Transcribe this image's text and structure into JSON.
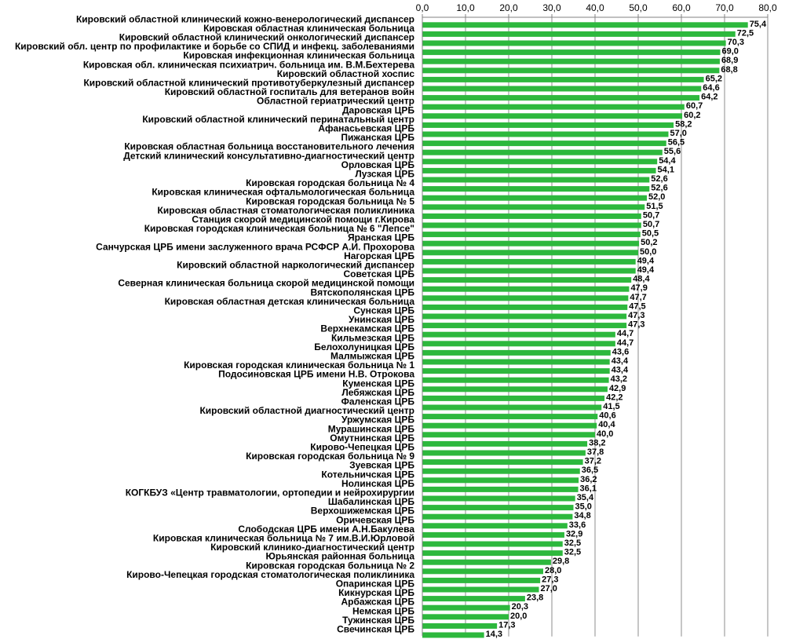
{
  "chart_data": {
    "type": "bar",
    "orientation": "horizontal",
    "bar_color": "#2db83d",
    "xlim": [
      0,
      80
    ],
    "xticks": [
      "0,0",
      "10,0",
      "20,0",
      "30,0",
      "40,0",
      "50,0",
      "60,0",
      "70,0",
      "80,0"
    ],
    "axis_position": "top",
    "grid": true,
    "categories": [
      "Кировский областной клинический кожно-венерологический диспансер",
      "Кировская областная клиническая больница",
      "Кировский областной клинический онкологический диспансер",
      "Кировский обл. центр по профилактике и борьбе со СПИД и инфекц. заболеваниями",
      "Кировская инфекционная клиническая больница",
      "Кировская обл. клиническая психиатрич. больница им. В.М.Бехтерева",
      "Кировский областной хоспис",
      "Кировский областной клинический противотуберкулезный диспансер",
      "Кировский областной госпиталь для ветеранов войн",
      "Областной гериатрический центр",
      "Даровская ЦРБ",
      "Кировский областной клинический перинатальный центр",
      "Афанасьевская ЦРБ",
      "Пижанская ЦРБ",
      "Кировская областная больница восстановительного лечения",
      "Детский клинический консультативно-диагностический центр",
      "Орловская ЦРБ",
      "Лузская ЦРБ",
      "Кировская городская больница № 4",
      "Кировская клиническая офтальмологическая больница",
      "Кировская городская больница № 5",
      "Кировская областная стоматологическая поликлиника",
      "Станция скорой медицинской помощи г.Кирова",
      "Кировская городская клиническая больница № 6 \"Лепсе\"",
      "Яранская ЦРБ",
      "Санчурская ЦРБ имени заслуженного врача РСФСР А.И. Прохорова",
      "Нагорская ЦРБ",
      "Кировский областной наркологический диспансер",
      "Советская ЦРБ",
      "Северная клиническая больница скорой медицинской помощи",
      "Вятскополянская ЦРБ",
      "Кировская областная детская клиническая больница",
      "Сунская ЦРБ",
      "Унинская ЦРБ",
      "Верхнекамская ЦРБ",
      "Кильмезская ЦРБ",
      "Белохолуницкая ЦРБ",
      "Малмыжская ЦРБ",
      "Кировская городская клиническая больница № 1",
      "Подосиновская ЦРБ имени Н.В. Отрокова",
      "Куменская ЦРБ",
      "Лебяжская ЦРБ",
      "Фаленская ЦРБ",
      "Кировский областной диагностический центр",
      "Уржумская ЦРБ",
      "Мурашинская ЦРБ",
      "Омутнинская ЦРБ",
      "Кирово-Чепецкая ЦРБ",
      "Кировская городская больница № 9",
      "Зуевская ЦРБ",
      "Котельничская ЦРБ",
      "Нолинская ЦРБ",
      "КОГКБУЗ «Центр травматологии, ортопедии и нейрохирургии",
      "Шабалинская ЦРБ",
      "Верхошижемская ЦРБ",
      "Оричевская ЦРБ",
      "Слободская ЦРБ имени А.Н.Бакулева",
      "Кировская клиническая больница № 7 им.В.И.Юрловой",
      "Кировский клинико-диагностический центр",
      "Юрьянская районная больница",
      "Кировская городская больница № 2",
      "Кирово-Чепецкая городская стоматологическая поликлиника",
      "Опаринская ЦРБ",
      "Кикнурская ЦРБ",
      "Арбажская ЦРБ",
      "Немская ЦРБ",
      "Тужинская ЦРБ",
      "Свечинская ЦРБ"
    ],
    "values": [
      75.4,
      72.5,
      70.3,
      69.0,
      68.9,
      68.8,
      65.2,
      64.6,
      64.2,
      60.7,
      60.2,
      58.2,
      57.0,
      56.5,
      55.6,
      54.4,
      54.1,
      52.6,
      52.6,
      52.0,
      51.5,
      50.7,
      50.7,
      50.5,
      50.2,
      50.0,
      49.4,
      49.4,
      48.4,
      47.9,
      47.7,
      47.5,
      47.3,
      47.3,
      44.7,
      44.7,
      43.6,
      43.4,
      43.4,
      43.2,
      42.9,
      42.2,
      41.5,
      40.6,
      40.4,
      40.0,
      38.2,
      37.8,
      37.2,
      36.5,
      36.2,
      36.1,
      35.4,
      35.0,
      34.8,
      33.6,
      32.9,
      32.5,
      32.5,
      29.8,
      28.0,
      27.3,
      27.0,
      23.8,
      20.3,
      20.0,
      17.3,
      14.3
    ],
    "value_labels": [
      "75,4",
      "72,5",
      "70,3",
      "69,0",
      "68,9",
      "68,8",
      "65,2",
      "64,6",
      "64,2",
      "60,7",
      "60,2",
      "58,2",
      "57,0",
      "56,5",
      "55,6",
      "54,4",
      "54,1",
      "52,6",
      "52,6",
      "52,0",
      "51,5",
      "50,7",
      "50,7",
      "50,5",
      "50,2",
      "50,0",
      "49,4",
      "49,4",
      "48,4",
      "47,9",
      "47,7",
      "47,5",
      "47,3",
      "47,3",
      "44,7",
      "44,7",
      "43,6",
      "43,4",
      "43,4",
      "43,2",
      "42,9",
      "42,2",
      "41,5",
      "40,6",
      "40,4",
      "40,0",
      "38,2",
      "37,8",
      "37,2",
      "36,5",
      "36,2",
      "36,1",
      "35,4",
      "35,0",
      "34,8",
      "33,6",
      "32,9",
      "32,5",
      "32,5",
      "29,8",
      "28,0",
      "27,3",
      "27,0",
      "23,8",
      "20,3",
      "20,0",
      "17,3",
      "14,3"
    ]
  }
}
